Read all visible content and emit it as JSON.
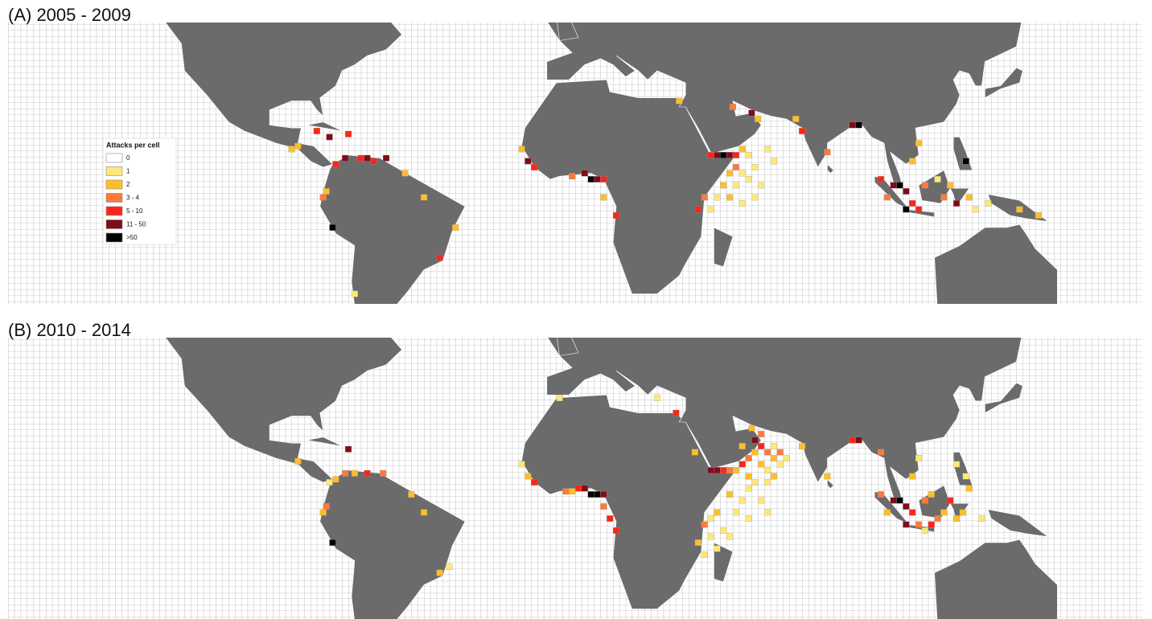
{
  "panels": [
    {
      "title": "(A) 2005 - 2009",
      "cells": [
        [
          45,
          12,
          5
        ],
        [
          47,
          12,
          6
        ],
        [
          49,
          12,
          5
        ],
        [
          51,
          12,
          4
        ],
        [
          43,
          12,
          4
        ],
        [
          53,
          14,
          2
        ],
        [
          55,
          12,
          1
        ],
        [
          51,
          8,
          3
        ],
        [
          49,
          6,
          2
        ],
        [
          53,
          6,
          1
        ],
        [
          47,
          2,
          2
        ],
        [
          51,
          2,
          1
        ],
        [
          55,
          4,
          1
        ],
        [
          57,
          8,
          1
        ],
        [
          49,
          -2,
          2
        ],
        [
          45,
          -2,
          1
        ],
        [
          53,
          -4,
          1
        ],
        [
          41,
          -2,
          3
        ],
        [
          43,
          -6,
          1
        ],
        [
          61,
          14,
          1
        ],
        [
          63,
          10,
          1
        ],
        [
          57,
          -2,
          1
        ],
        [
          59,
          2,
          1
        ],
        [
          39,
          -6,
          4
        ],
        [
          3,
          6,
          5
        ],
        [
          5,
          4,
          6
        ],
        [
          7,
          4,
          5
        ],
        [
          9,
          4,
          4
        ],
        [
          -1,
          5,
          3
        ],
        [
          -13,
          8,
          4
        ],
        [
          -17,
          14,
          2
        ],
        [
          -15,
          10,
          5
        ],
        [
          9,
          -2,
          2
        ],
        [
          13,
          -8,
          4
        ],
        [
          72,
          20,
          4
        ],
        [
          80,
          13,
          3
        ],
        [
          88,
          22,
          5
        ],
        [
          90,
          22,
          6
        ],
        [
          70,
          24,
          2
        ],
        [
          56,
          26,
          5
        ],
        [
          58,
          24,
          2
        ],
        [
          50,
          28,
          3
        ],
        [
          33,
          30,
          2
        ],
        [
          101,
          2,
          5
        ],
        [
          103,
          2,
          6
        ],
        [
          105,
          0,
          5
        ],
        [
          107,
          -4,
          4
        ],
        [
          105,
          -6,
          6
        ],
        [
          109,
          -6,
          4
        ],
        [
          111,
          2,
          3
        ],
        [
          117,
          -2,
          3
        ],
        [
          119,
          2,
          2
        ],
        [
          121,
          -4,
          5
        ],
        [
          115,
          4,
          1
        ],
        [
          97,
          4,
          4
        ],
        [
          99,
          -2,
          3
        ],
        [
          107,
          10,
          2
        ],
        [
          109,
          16,
          2
        ],
        [
          125,
          -2,
          2
        ],
        [
          124,
          10,
          6
        ],
        [
          127,
          -6,
          1
        ],
        [
          131,
          -4,
          1
        ],
        [
          141,
          -6,
          2
        ],
        [
          147,
          -8,
          2
        ],
        [
          -60,
          11,
          5
        ],
        [
          -64,
          10,
          4
        ],
        [
          -66,
          11,
          5
        ],
        [
          -68,
          11,
          4
        ],
        [
          -73,
          11,
          5
        ],
        [
          -76,
          9,
          4
        ],
        [
          -79,
          0,
          2
        ],
        [
          -80,
          -2,
          3
        ],
        [
          -77,
          -12,
          6
        ],
        [
          -82,
          20,
          4
        ],
        [
          -78,
          18,
          5
        ],
        [
          -72,
          19,
          4
        ],
        [
          -88,
          15,
          2
        ],
        [
          -90,
          14,
          2
        ],
        [
          -54,
          6,
          2
        ],
        [
          -48,
          -2,
          2
        ],
        [
          -38,
          -12,
          2
        ],
        [
          -43,
          -22,
          4
        ],
        [
          -70,
          -34,
          1
        ]
      ]
    },
    {
      "title": "(B) 2010 - 2014",
      "cells": [
        [
          43,
          12,
          5
        ],
        [
          45,
          12,
          5
        ],
        [
          47,
          12,
          4
        ],
        [
          49,
          12,
          3
        ],
        [
          51,
          12,
          2
        ],
        [
          53,
          14,
          4
        ],
        [
          55,
          16,
          3
        ],
        [
          57,
          18,
          2
        ],
        [
          59,
          20,
          4
        ],
        [
          61,
          18,
          3
        ],
        [
          63,
          16,
          2
        ],
        [
          65,
          14,
          1
        ],
        [
          59,
          14,
          2
        ],
        [
          61,
          12,
          1
        ],
        [
          55,
          10,
          2
        ],
        [
          57,
          8,
          1
        ],
        [
          61,
          8,
          1
        ],
        [
          63,
          10,
          2
        ],
        [
          65,
          18,
          3
        ],
        [
          67,
          16,
          1
        ],
        [
          53,
          20,
          2
        ],
        [
          57,
          22,
          5
        ],
        [
          59,
          24,
          3
        ],
        [
          63,
          20,
          1
        ],
        [
          55,
          6,
          1
        ],
        [
          53,
          2,
          1
        ],
        [
          49,
          4,
          2
        ],
        [
          45,
          -2,
          2
        ],
        [
          43,
          -4,
          1
        ],
        [
          41,
          -6,
          3
        ],
        [
          43,
          -10,
          1
        ],
        [
          47,
          -8,
          1
        ],
        [
          51,
          -2,
          1
        ],
        [
          45,
          -14,
          1
        ],
        [
          39,
          -12,
          2
        ],
        [
          41,
          -16,
          1
        ],
        [
          49,
          -10,
          1
        ],
        [
          55,
          -4,
          1
        ],
        [
          59,
          2,
          1
        ],
        [
          61,
          -2,
          1
        ],
        [
          3,
          6,
          5
        ],
        [
          5,
          4,
          6
        ],
        [
          7,
          4,
          6
        ],
        [
          9,
          4,
          5
        ],
        [
          1,
          6,
          4
        ],
        [
          -1,
          5,
          2
        ],
        [
          -3,
          5,
          3
        ],
        [
          -13,
          8,
          4
        ],
        [
          -15,
          10,
          2
        ],
        [
          9,
          0,
          3
        ],
        [
          11,
          -4,
          4
        ],
        [
          13,
          -8,
          4
        ],
        [
          -17,
          14,
          1
        ],
        [
          72,
          20,
          2
        ],
        [
          80,
          10,
          2
        ],
        [
          88,
          22,
          4
        ],
        [
          90,
          22,
          5
        ],
        [
          97,
          18,
          3
        ],
        [
          56,
          26,
          2
        ],
        [
          32,
          31,
          4
        ],
        [
          -5,
          36,
          1
        ],
        [
          26,
          36,
          1
        ],
        [
          38,
          18,
          2
        ],
        [
          101,
          2,
          5
        ],
        [
          103,
          2,
          6
        ],
        [
          105,
          0,
          5
        ],
        [
          107,
          -2,
          4
        ],
        [
          105,
          -6,
          5
        ],
        [
          109,
          -6,
          3
        ],
        [
          111,
          2,
          3
        ],
        [
          113,
          4,
          2
        ],
        [
          117,
          -2,
          2
        ],
        [
          119,
          2,
          4
        ],
        [
          121,
          -4,
          2
        ],
        [
          115,
          -4,
          3
        ],
        [
          97,
          4,
          3
        ],
        [
          99,
          -2,
          2
        ],
        [
          107,
          10,
          2
        ],
        [
          109,
          16,
          1
        ],
        [
          123,
          -2,
          2
        ],
        [
          125,
          6,
          2
        ],
        [
          121,
          14,
          1
        ],
        [
          124,
          10,
          1
        ],
        [
          113,
          -6,
          4
        ],
        [
          111,
          -8,
          1
        ],
        [
          129,
          -4,
          1
        ],
        [
          -61,
          11,
          3
        ],
        [
          -66,
          11,
          4
        ],
        [
          -70,
          11,
          2
        ],
        [
          -73,
          11,
          3
        ],
        [
          -76,
          9,
          2
        ],
        [
          -78,
          8,
          1
        ],
        [
          -79,
          0,
          3
        ],
        [
          -80,
          -2,
          2
        ],
        [
          -77,
          -12,
          6
        ],
        [
          -72,
          19,
          5
        ],
        [
          -88,
          15,
          2
        ],
        [
          -52,
          4,
          2
        ],
        [
          -48,
          -2,
          2
        ],
        [
          -43,
          -22,
          2
        ],
        [
          -40,
          -20,
          1
        ]
      ]
    }
  ],
  "legend": {
    "title": "Attacks per cell",
    "items": [
      {
        "label": "0",
        "color": "#ffffff"
      },
      {
        "label": "1",
        "color": "#fee87a"
      },
      {
        "label": "2",
        "color": "#fdbe2b"
      },
      {
        "label": "3 - 4",
        "color": "#fb7a3c"
      },
      {
        "label": "5 - 10",
        "color": "#f8261a"
      },
      {
        "label": "11 - 50",
        "color": "#7f0c1b"
      },
      {
        "label": ">50",
        "color": "#000000"
      }
    ]
  }
}
